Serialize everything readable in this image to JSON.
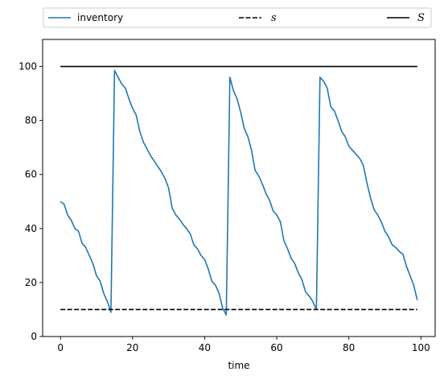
{
  "chart_data": {
    "type": "line",
    "xlabel": "time",
    "ylabel": "",
    "xlim": [
      -4.95,
      103.95
    ],
    "ylim": [
      0,
      110
    ],
    "xticks": [
      0,
      20,
      40,
      60,
      80,
      100
    ],
    "yticks": [
      0,
      20,
      40,
      60,
      80,
      100
    ],
    "grid": false,
    "legend_position": "above plot, single row",
    "series": [
      {
        "name": "inventory",
        "color": "#1f77b4",
        "style": "solid",
        "x": [
          0,
          1,
          2,
          3,
          4,
          5,
          6,
          7,
          8,
          9,
          10,
          11,
          12,
          13,
          14,
          15,
          16,
          17,
          18,
          19,
          20,
          21,
          22,
          23,
          24,
          25,
          26,
          27,
          28,
          29,
          30,
          31,
          32,
          33,
          34,
          35,
          36,
          37,
          38,
          39,
          40,
          41,
          42,
          43,
          44,
          45,
          46,
          47,
          48,
          49,
          50,
          51,
          52,
          53,
          54,
          55,
          56,
          57,
          58,
          59,
          60,
          61,
          62,
          63,
          64,
          65,
          66,
          67,
          68,
          69,
          70,
          71,
          72,
          73,
          74,
          75,
          76,
          77,
          78,
          79,
          80,
          81,
          82,
          83,
          84,
          85,
          86,
          87,
          88,
          89,
          90,
          91,
          92,
          93,
          94,
          95,
          96,
          97,
          98,
          99
        ],
        "values": [
          50,
          49,
          45,
          43,
          40,
          39,
          34.5,
          33,
          30,
          27,
          22.5,
          20.5,
          16,
          13,
          9,
          98.5,
          96,
          93.5,
          92,
          88,
          84.5,
          82,
          76,
          72,
          69.5,
          67,
          65,
          63,
          61,
          58.5,
          55,
          47.5,
          45,
          43.5,
          41.5,
          40,
          38,
          34,
          32.5,
          30,
          28.5,
          25,
          20.5,
          19,
          16,
          10.5,
          8,
          96,
          91,
          88,
          83,
          77,
          74,
          69,
          61.5,
          59.5,
          56.5,
          53,
          50.5,
          46.5,
          45,
          42.5,
          35.5,
          32.5,
          29,
          27,
          23.5,
          21,
          16.5,
          15,
          13,
          10,
          96,
          94.5,
          92,
          85,
          83.5,
          80,
          76,
          74,
          70.5,
          69,
          67.5,
          66,
          63.5,
          57,
          51.5,
          47,
          45,
          42.5,
          39,
          37,
          34,
          33,
          31.5,
          30.5,
          26,
          22.5,
          19,
          13.5
        ]
      },
      {
        "name": "s",
        "color": "#000000",
        "style": "dashed",
        "x": [
          0,
          99
        ],
        "values": [
          10,
          10
        ]
      },
      {
        "name": "S",
        "color": "#000000",
        "style": "solid",
        "x": [
          0,
          99
        ],
        "values": [
          100,
          100
        ]
      }
    ]
  }
}
